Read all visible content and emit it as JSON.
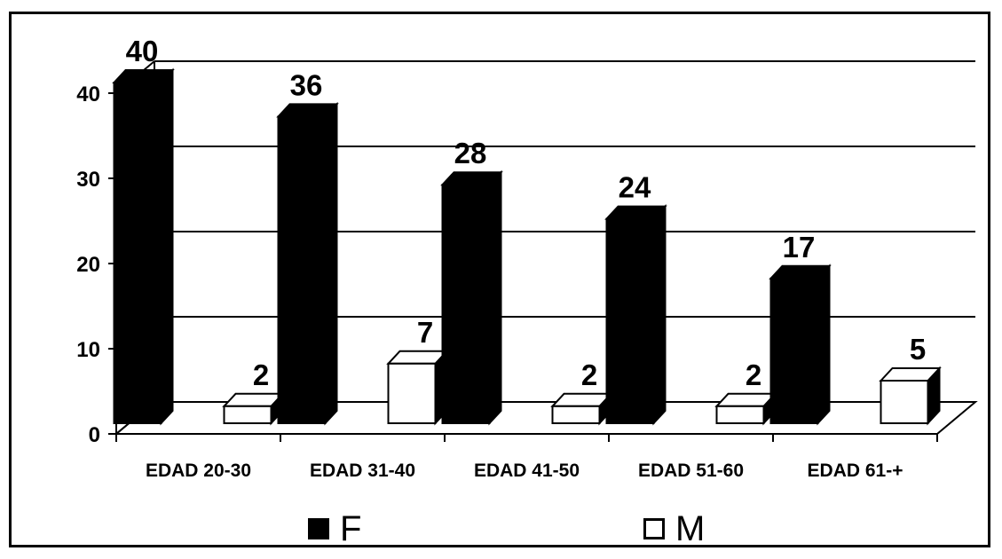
{
  "chart_data": {
    "type": "bar",
    "title": "",
    "xlabel": "",
    "ylabel": "",
    "categories": [
      "EDAD 20-30",
      "EDAD 31-40",
      "EDAD 41-50",
      "EDAD 51-60",
      "EDAD 61-+"
    ],
    "series": [
      {
        "name": "F",
        "values": [
          40,
          36,
          28,
          24,
          17
        ],
        "color": "#000000"
      },
      {
        "name": "M",
        "values": [
          2,
          7,
          2,
          2,
          5
        ],
        "color": "#ffffff"
      }
    ],
    "yticks": [
      "0",
      "10",
      "20",
      "30",
      "40"
    ],
    "ylim": [
      0,
      40
    ],
    "grid": true,
    "legend_position": "bottom",
    "style": "3d-clustered-column"
  }
}
